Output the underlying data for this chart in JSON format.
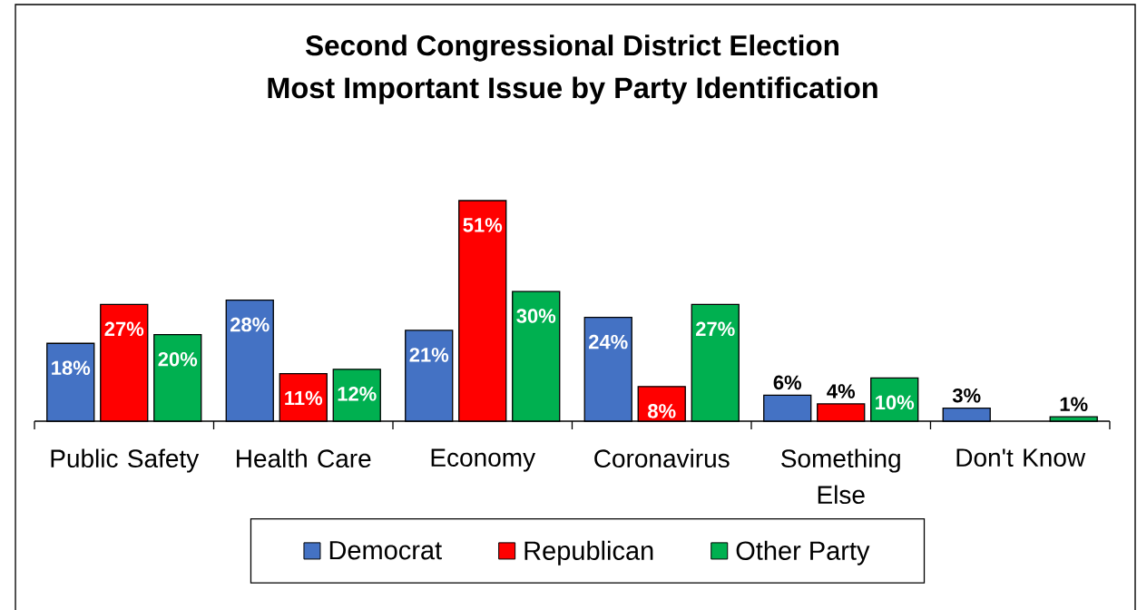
{
  "chart_data": {
    "type": "bar",
    "title": "Second Congressional District Election",
    "subtitle": "Most Important Issue by Party Identification",
    "categories": [
      "Public Safety",
      "Health Care",
      "Economy",
      "Coronavirus",
      "Something Else",
      "Don't Know"
    ],
    "series": [
      {
        "name": "Democrat",
        "color": "#4472c4",
        "values": [
          18,
          28,
          21,
          24,
          6,
          3
        ],
        "value_labels": [
          "18%",
          "28%",
          "21%",
          "24%",
          "6%",
          "3%"
        ]
      },
      {
        "name": "Republican",
        "color": "#ff0000",
        "values": [
          27,
          11,
          51,
          8,
          4,
          null
        ],
        "value_labels": [
          "27%",
          "11%",
          "51%",
          "8%",
          "4%",
          null
        ]
      },
      {
        "name": "Other Party",
        "color": "#00b050",
        "values": [
          20,
          12,
          30,
          27,
          10,
          1
        ],
        "value_labels": [
          "20%",
          "12%",
          "30%",
          "27%",
          "10%",
          "1%"
        ]
      }
    ],
    "legend": "bottom"
  }
}
